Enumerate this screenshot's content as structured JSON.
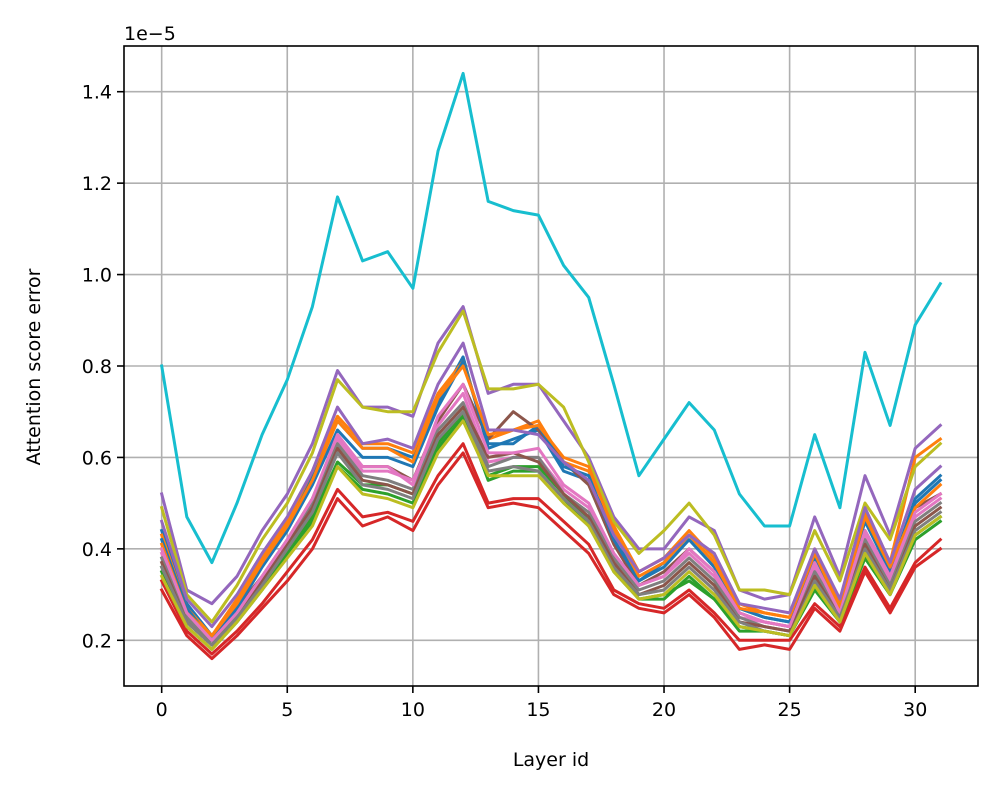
{
  "chart_data": {
    "type": "line",
    "title": "",
    "xlabel": "Layer id",
    "ylabel": "Attention score error",
    "y_offset_label": "1e−5",
    "y_scale_factor": 1e-05,
    "xlim": [
      -1.5,
      32.5
    ],
    "ylim": [
      0.1,
      1.5
    ],
    "grid": true,
    "legend": "none",
    "xticks": [
      0,
      5,
      10,
      15,
      20,
      25,
      30
    ],
    "xtick_labels": [
      "0",
      "5",
      "10",
      "15",
      "20",
      "25",
      "30"
    ],
    "yticks": [
      0.2,
      0.4,
      0.6,
      0.8,
      1.0,
      1.2,
      1.4
    ],
    "ytick_labels": [
      "0.2",
      "0.4",
      "0.6",
      "0.8",
      "1.0",
      "1.2",
      "1.4"
    ],
    "x": [
      0,
      1,
      2,
      3,
      4,
      5,
      6,
      7,
      8,
      9,
      10,
      11,
      12,
      13,
      14,
      15,
      16,
      17,
      18,
      19,
      20,
      21,
      22,
      23,
      24,
      25,
      26,
      27,
      28,
      29,
      30,
      31
    ],
    "series": [
      {
        "color": "#1f77b4",
        "values": [
          0.44,
          0.28,
          0.21,
          0.28,
          0.37,
          0.46,
          0.56,
          0.68,
          0.62,
          0.62,
          0.6,
          0.72,
          0.82,
          0.62,
          0.64,
          0.66,
          0.57,
          0.55,
          0.44,
          0.33,
          0.37,
          0.43,
          0.37,
          0.27,
          0.25,
          0.24,
          0.39,
          0.28,
          0.47,
          0.35,
          0.51,
          0.56
        ]
      },
      {
        "color": "#ff7f0e",
        "values": [
          0.43,
          0.27,
          0.21,
          0.29,
          0.38,
          0.46,
          0.57,
          0.69,
          0.63,
          0.63,
          0.61,
          0.74,
          0.81,
          0.64,
          0.66,
          0.68,
          0.59,
          0.57,
          0.45,
          0.35,
          0.38,
          0.44,
          0.38,
          0.28,
          0.26,
          0.25,
          0.4,
          0.28,
          0.48,
          0.37,
          0.6,
          0.64
        ]
      },
      {
        "color": "#2ca02c",
        "values": [
          0.36,
          0.24,
          0.19,
          0.25,
          0.32,
          0.4,
          0.47,
          0.59,
          0.54,
          0.54,
          0.52,
          0.63,
          0.7,
          0.55,
          0.57,
          0.57,
          0.51,
          0.45,
          0.36,
          0.29,
          0.29,
          0.34,
          0.29,
          0.22,
          0.22,
          0.21,
          0.32,
          0.24,
          0.38,
          0.3,
          0.43,
          0.47
        ]
      },
      {
        "color": "#d62728",
        "values": [
          0.31,
          0.21,
          0.16,
          0.21,
          0.27,
          0.33,
          0.4,
          0.51,
          0.45,
          0.47,
          0.44,
          0.54,
          0.61,
          0.49,
          0.5,
          0.49,
          0.44,
          0.39,
          0.3,
          0.27,
          0.26,
          0.3,
          0.25,
          0.18,
          0.19,
          0.18,
          0.27,
          0.22,
          0.35,
          0.26,
          0.36,
          0.4
        ]
      },
      {
        "color": "#d62728",
        "values": [
          0.33,
          0.22,
          0.17,
          0.22,
          0.28,
          0.35,
          0.42,
          0.53,
          0.47,
          0.48,
          0.46,
          0.56,
          0.63,
          0.5,
          0.51,
          0.51,
          0.46,
          0.41,
          0.31,
          0.28,
          0.27,
          0.31,
          0.26,
          0.2,
          0.2,
          0.2,
          0.28,
          0.23,
          0.36,
          0.27,
          0.37,
          0.42
        ]
      },
      {
        "color": "#9467bd",
        "values": [
          0.52,
          0.31,
          0.28,
          0.34,
          0.44,
          0.52,
          0.63,
          0.79,
          0.71,
          0.71,
          0.69,
          0.85,
          0.93,
          0.74,
          0.76,
          0.76,
          0.68,
          0.6,
          0.47,
          0.4,
          0.4,
          0.47,
          0.44,
          0.31,
          0.29,
          0.3,
          0.47,
          0.34,
          0.56,
          0.43,
          0.62,
          0.67
        ]
      },
      {
        "color": "#8c564b",
        "values": [
          0.4,
          0.26,
          0.2,
          0.27,
          0.34,
          0.42,
          0.51,
          0.64,
          0.58,
          0.58,
          0.55,
          0.68,
          0.76,
          0.64,
          0.7,
          0.66,
          0.59,
          0.54,
          0.41,
          0.32,
          0.35,
          0.4,
          0.35,
          0.26,
          0.24,
          0.23,
          0.37,
          0.27,
          0.44,
          0.34,
          0.49,
          0.52
        ]
      },
      {
        "color": "#e377c2",
        "values": [
          0.39,
          0.25,
          0.2,
          0.26,
          0.34,
          0.42,
          0.51,
          0.64,
          0.57,
          0.57,
          0.55,
          0.67,
          0.74,
          0.59,
          0.6,
          0.6,
          0.53,
          0.49,
          0.39,
          0.32,
          0.34,
          0.39,
          0.34,
          0.25,
          0.24,
          0.23,
          0.36,
          0.26,
          0.43,
          0.33,
          0.47,
          0.51
        ]
      },
      {
        "color": "#7f7f7f",
        "values": [
          0.38,
          0.25,
          0.19,
          0.26,
          0.33,
          0.41,
          0.5,
          0.63,
          0.56,
          0.55,
          0.53,
          0.66,
          0.72,
          0.58,
          0.6,
          0.6,
          0.52,
          0.48,
          0.38,
          0.31,
          0.33,
          0.38,
          0.33,
          0.25,
          0.23,
          0.22,
          0.35,
          0.26,
          0.42,
          0.32,
          0.46,
          0.5
        ]
      },
      {
        "color": "#bcbd22",
        "values": [
          0.49,
          0.3,
          0.24,
          0.32,
          0.42,
          0.5,
          0.61,
          0.77,
          0.71,
          0.7,
          0.7,
          0.83,
          0.92,
          0.75,
          0.75,
          0.76,
          0.71,
          0.59,
          0.46,
          0.39,
          0.44,
          0.5,
          0.43,
          0.31,
          0.31,
          0.3,
          0.44,
          0.33,
          0.5,
          0.42,
          0.58,
          0.63
        ]
      },
      {
        "color": "#17becf",
        "values": [
          0.8,
          0.47,
          0.37,
          0.5,
          0.65,
          0.77,
          0.93,
          1.17,
          1.03,
          1.05,
          0.97,
          1.27,
          1.44,
          1.16,
          1.14,
          1.13,
          1.02,
          0.95,
          0.76,
          0.56,
          0.64,
          0.72,
          0.66,
          0.52,
          0.45,
          0.45,
          0.65,
          0.49,
          0.83,
          0.67,
          0.89,
          0.98
        ]
      },
      {
        "color": "#1f77b4",
        "values": [
          0.42,
          0.27,
          0.2,
          0.27,
          0.36,
          0.44,
          0.54,
          0.66,
          0.6,
          0.6,
          0.58,
          0.71,
          0.81,
          0.63,
          0.63,
          0.67,
          0.58,
          0.56,
          0.42,
          0.33,
          0.36,
          0.42,
          0.36,
          0.27,
          0.25,
          0.24,
          0.38,
          0.27,
          0.46,
          0.35,
          0.5,
          0.55
        ]
      },
      {
        "color": "#ff7f0e",
        "values": [
          0.41,
          0.26,
          0.21,
          0.28,
          0.37,
          0.45,
          0.55,
          0.68,
          0.62,
          0.62,
          0.59,
          0.73,
          0.8,
          0.65,
          0.66,
          0.67,
          0.6,
          0.58,
          0.44,
          0.34,
          0.37,
          0.43,
          0.37,
          0.27,
          0.26,
          0.25,
          0.39,
          0.27,
          0.47,
          0.36,
          0.49,
          0.54
        ]
      },
      {
        "color": "#2ca02c",
        "values": [
          0.35,
          0.23,
          0.18,
          0.24,
          0.31,
          0.39,
          0.46,
          0.58,
          0.53,
          0.52,
          0.5,
          0.62,
          0.69,
          0.56,
          0.58,
          0.58,
          0.52,
          0.46,
          0.35,
          0.29,
          0.3,
          0.33,
          0.29,
          0.23,
          0.22,
          0.21,
          0.31,
          0.24,
          0.38,
          0.3,
          0.42,
          0.46
        ]
      },
      {
        "color": "#9467bd",
        "values": [
          0.46,
          0.29,
          0.23,
          0.3,
          0.39,
          0.47,
          0.57,
          0.71,
          0.63,
          0.64,
          0.62,
          0.76,
          0.85,
          0.66,
          0.66,
          0.65,
          0.59,
          0.55,
          0.43,
          0.35,
          0.38,
          0.43,
          0.39,
          0.28,
          0.27,
          0.26,
          0.4,
          0.29,
          0.49,
          0.37,
          0.53,
          0.58
        ]
      },
      {
        "color": "#8c564b",
        "values": [
          0.37,
          0.24,
          0.19,
          0.25,
          0.33,
          0.41,
          0.49,
          0.62,
          0.55,
          0.54,
          0.52,
          0.65,
          0.71,
          0.6,
          0.61,
          0.59,
          0.52,
          0.47,
          0.37,
          0.3,
          0.32,
          0.37,
          0.32,
          0.24,
          0.23,
          0.22,
          0.34,
          0.25,
          0.41,
          0.31,
          0.45,
          0.49
        ]
      },
      {
        "color": "#e377c2",
        "values": [
          0.4,
          0.26,
          0.2,
          0.26,
          0.34,
          0.42,
          0.51,
          0.65,
          0.58,
          0.58,
          0.54,
          0.69,
          0.76,
          0.61,
          0.61,
          0.62,
          0.54,
          0.5,
          0.39,
          0.32,
          0.34,
          0.4,
          0.35,
          0.26,
          0.24,
          0.23,
          0.37,
          0.26,
          0.44,
          0.34,
          0.48,
          0.52
        ]
      },
      {
        "color": "#7f7f7f",
        "values": [
          0.36,
          0.24,
          0.19,
          0.25,
          0.32,
          0.4,
          0.48,
          0.61,
          0.54,
          0.53,
          0.51,
          0.64,
          0.7,
          0.57,
          0.58,
          0.57,
          0.51,
          0.46,
          0.36,
          0.3,
          0.31,
          0.36,
          0.31,
          0.24,
          0.22,
          0.21,
          0.33,
          0.25,
          0.4,
          0.31,
          0.44,
          0.48
        ]
      },
      {
        "color": "#bcbd22",
        "values": [
          0.34,
          0.23,
          0.18,
          0.24,
          0.31,
          0.38,
          0.45,
          0.58,
          0.52,
          0.51,
          0.49,
          0.61,
          0.68,
          0.56,
          0.56,
          0.56,
          0.5,
          0.45,
          0.35,
          0.29,
          0.3,
          0.35,
          0.3,
          0.23,
          0.22,
          0.21,
          0.32,
          0.24,
          0.39,
          0.3,
          0.43,
          0.47
        ]
      }
    ]
  }
}
